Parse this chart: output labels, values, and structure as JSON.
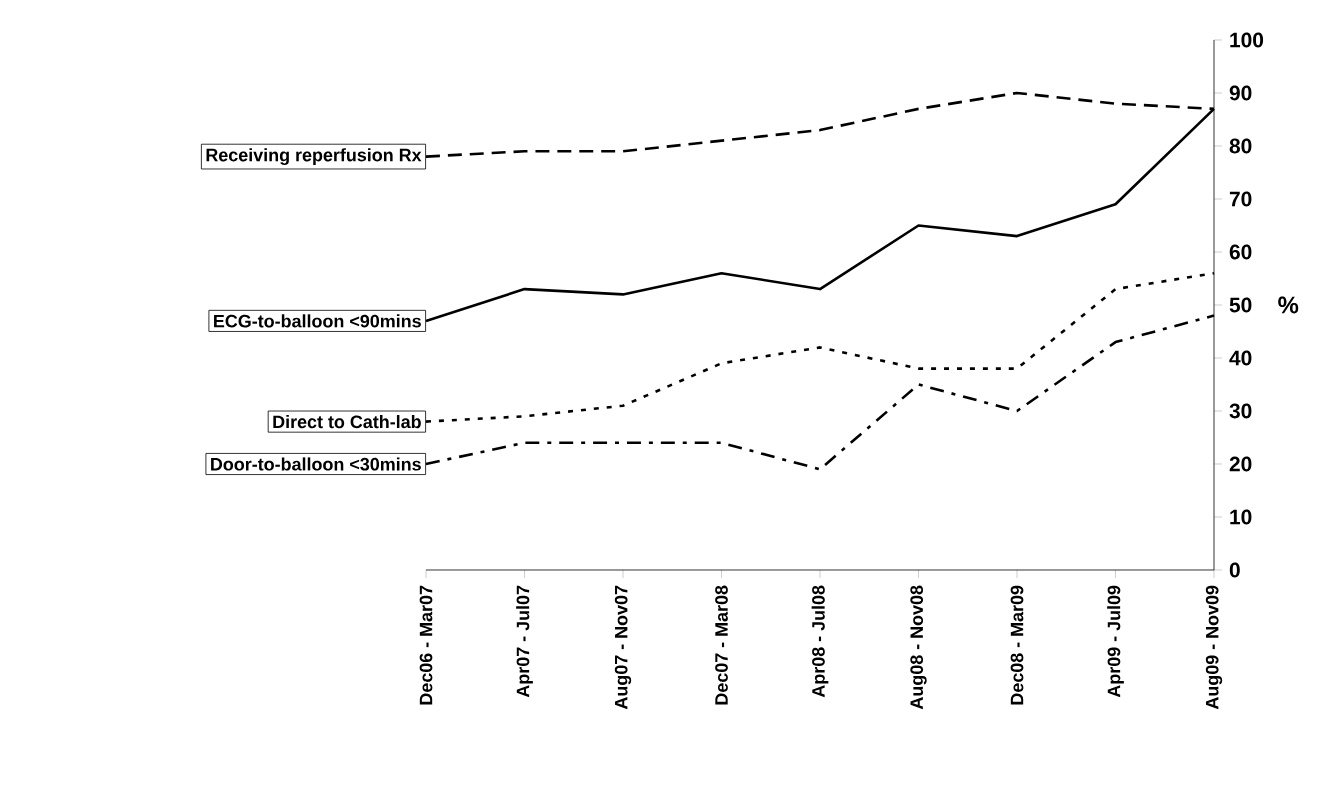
{
  "chart_data": {
    "type": "line",
    "ylabel": "%",
    "categories": [
      "Dec06 - Mar07",
      "Apr07 - Jul07",
      "Aug07 - Nov07",
      "Dec07 - Mar08",
      "Apr08 - Jul08",
      "Aug08 - Nov08",
      "Dec08 - Mar09",
      "Apr09 - Jul09",
      "Aug09 - Nov09"
    ],
    "series": [
      {
        "name": "Receiving reperfusion Rx",
        "color": "#000000",
        "line_style": "dashed",
        "values": [
          78,
          79,
          79,
          81,
          83,
          87,
          90,
          88,
          87
        ]
      },
      {
        "name": "ECG-to-balloon <90mins",
        "color": "#000000",
        "line_style": "solid",
        "values": [
          47,
          53,
          52,
          56,
          53,
          65,
          63,
          69,
          87
        ]
      },
      {
        "name": "Direct to Cath-lab",
        "color": "#000000",
        "line_style": "dotted",
        "values": [
          28,
          29,
          31,
          39,
          42,
          38,
          38,
          53,
          56
        ]
      },
      {
        "name": "Door-to-balloon <30mins",
        "color": "#000000",
        "line_style": "dashdot",
        "values": [
          20,
          24,
          24,
          24,
          19,
          35,
          30,
          43,
          48
        ]
      }
    ],
    "ylim": [
      0,
      100
    ],
    "yticks": [
      0,
      10,
      20,
      30,
      40,
      50,
      60,
      70,
      80,
      90,
      100
    ],
    "grid": false,
    "legend": false
  }
}
